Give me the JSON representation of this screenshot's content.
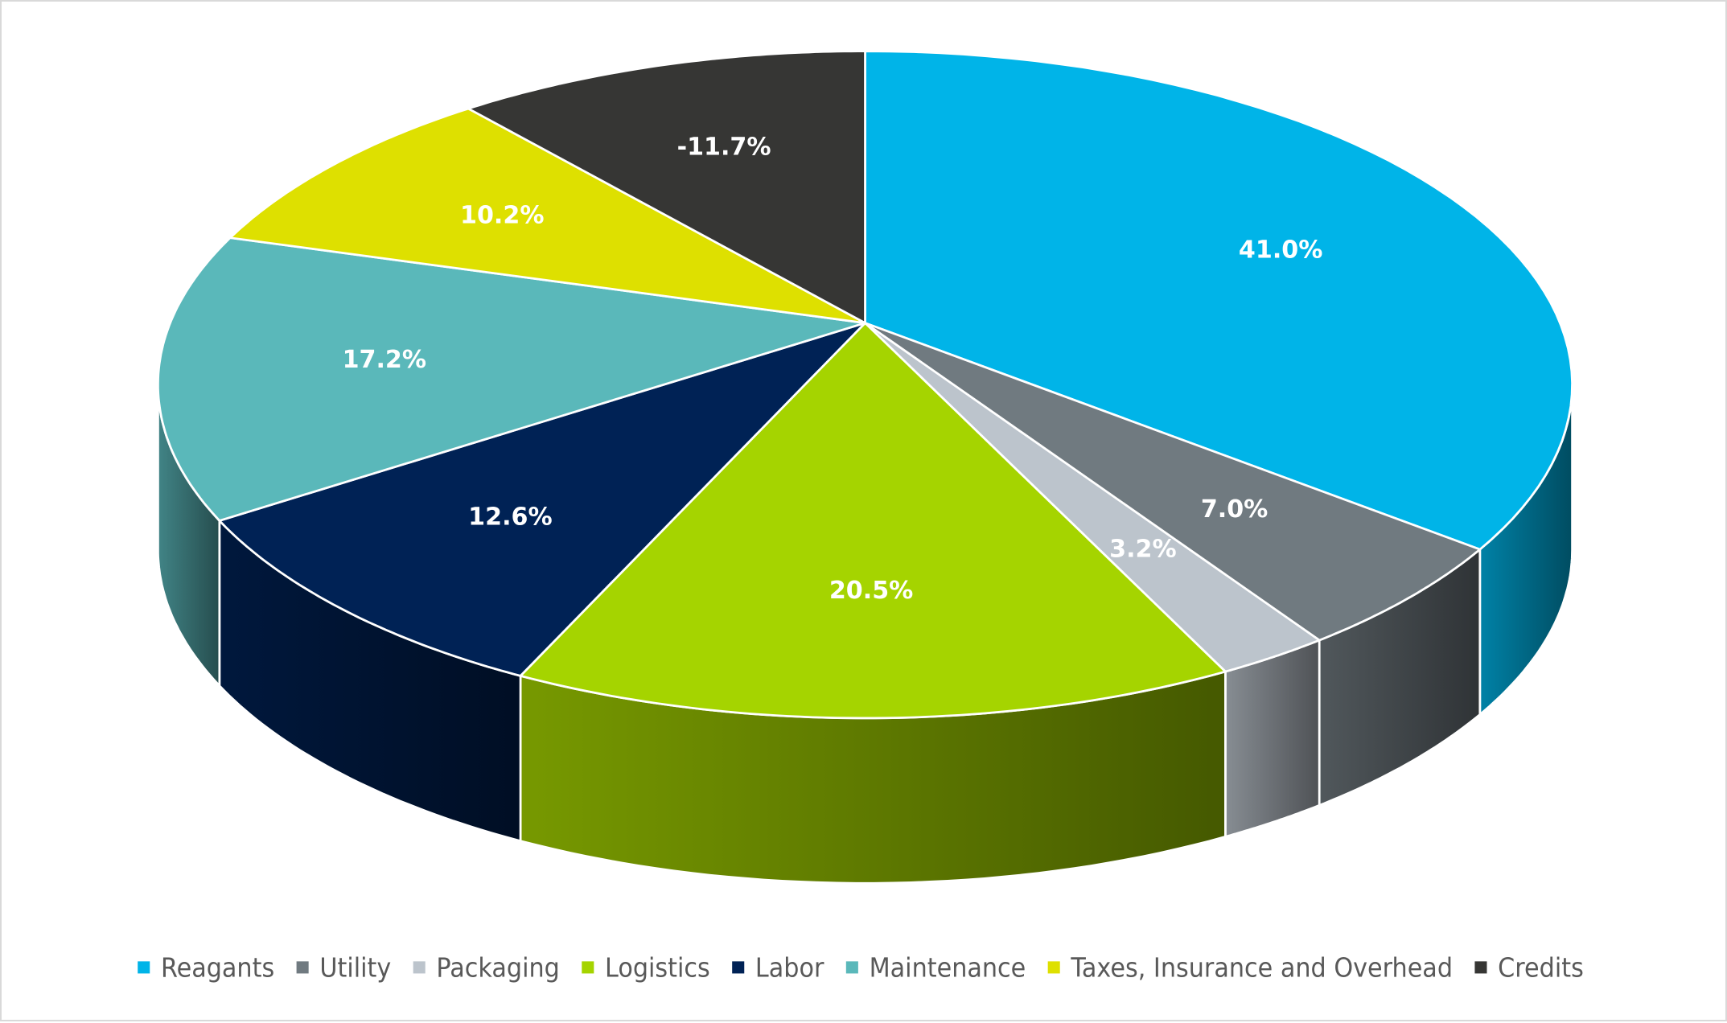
{
  "chart_data": {
    "type": "pie",
    "style": "3d",
    "title": "",
    "legend_position": "bottom",
    "categories": [
      "Reagants",
      "Utility",
      "Packaging",
      "Logistics",
      "Labor",
      "Maintenance",
      "Taxes, Insurance and Overhead",
      "Credits"
    ],
    "values": [
      41.0,
      7.0,
      3.2,
      20.5,
      12.6,
      17.2,
      10.2,
      -11.7
    ],
    "data_labels": [
      "41.0%",
      "7.0%",
      "3.2%",
      "20.5%",
      "12.6%",
      "17.2%",
      "10.2%",
      "-11.7%"
    ],
    "colors": [
      "#00B4E8",
      "#707A80",
      "#BCC4CC",
      "#A5D400",
      "#002255",
      "#5AB8BA",
      "#DEE000",
      "#363634"
    ]
  }
}
